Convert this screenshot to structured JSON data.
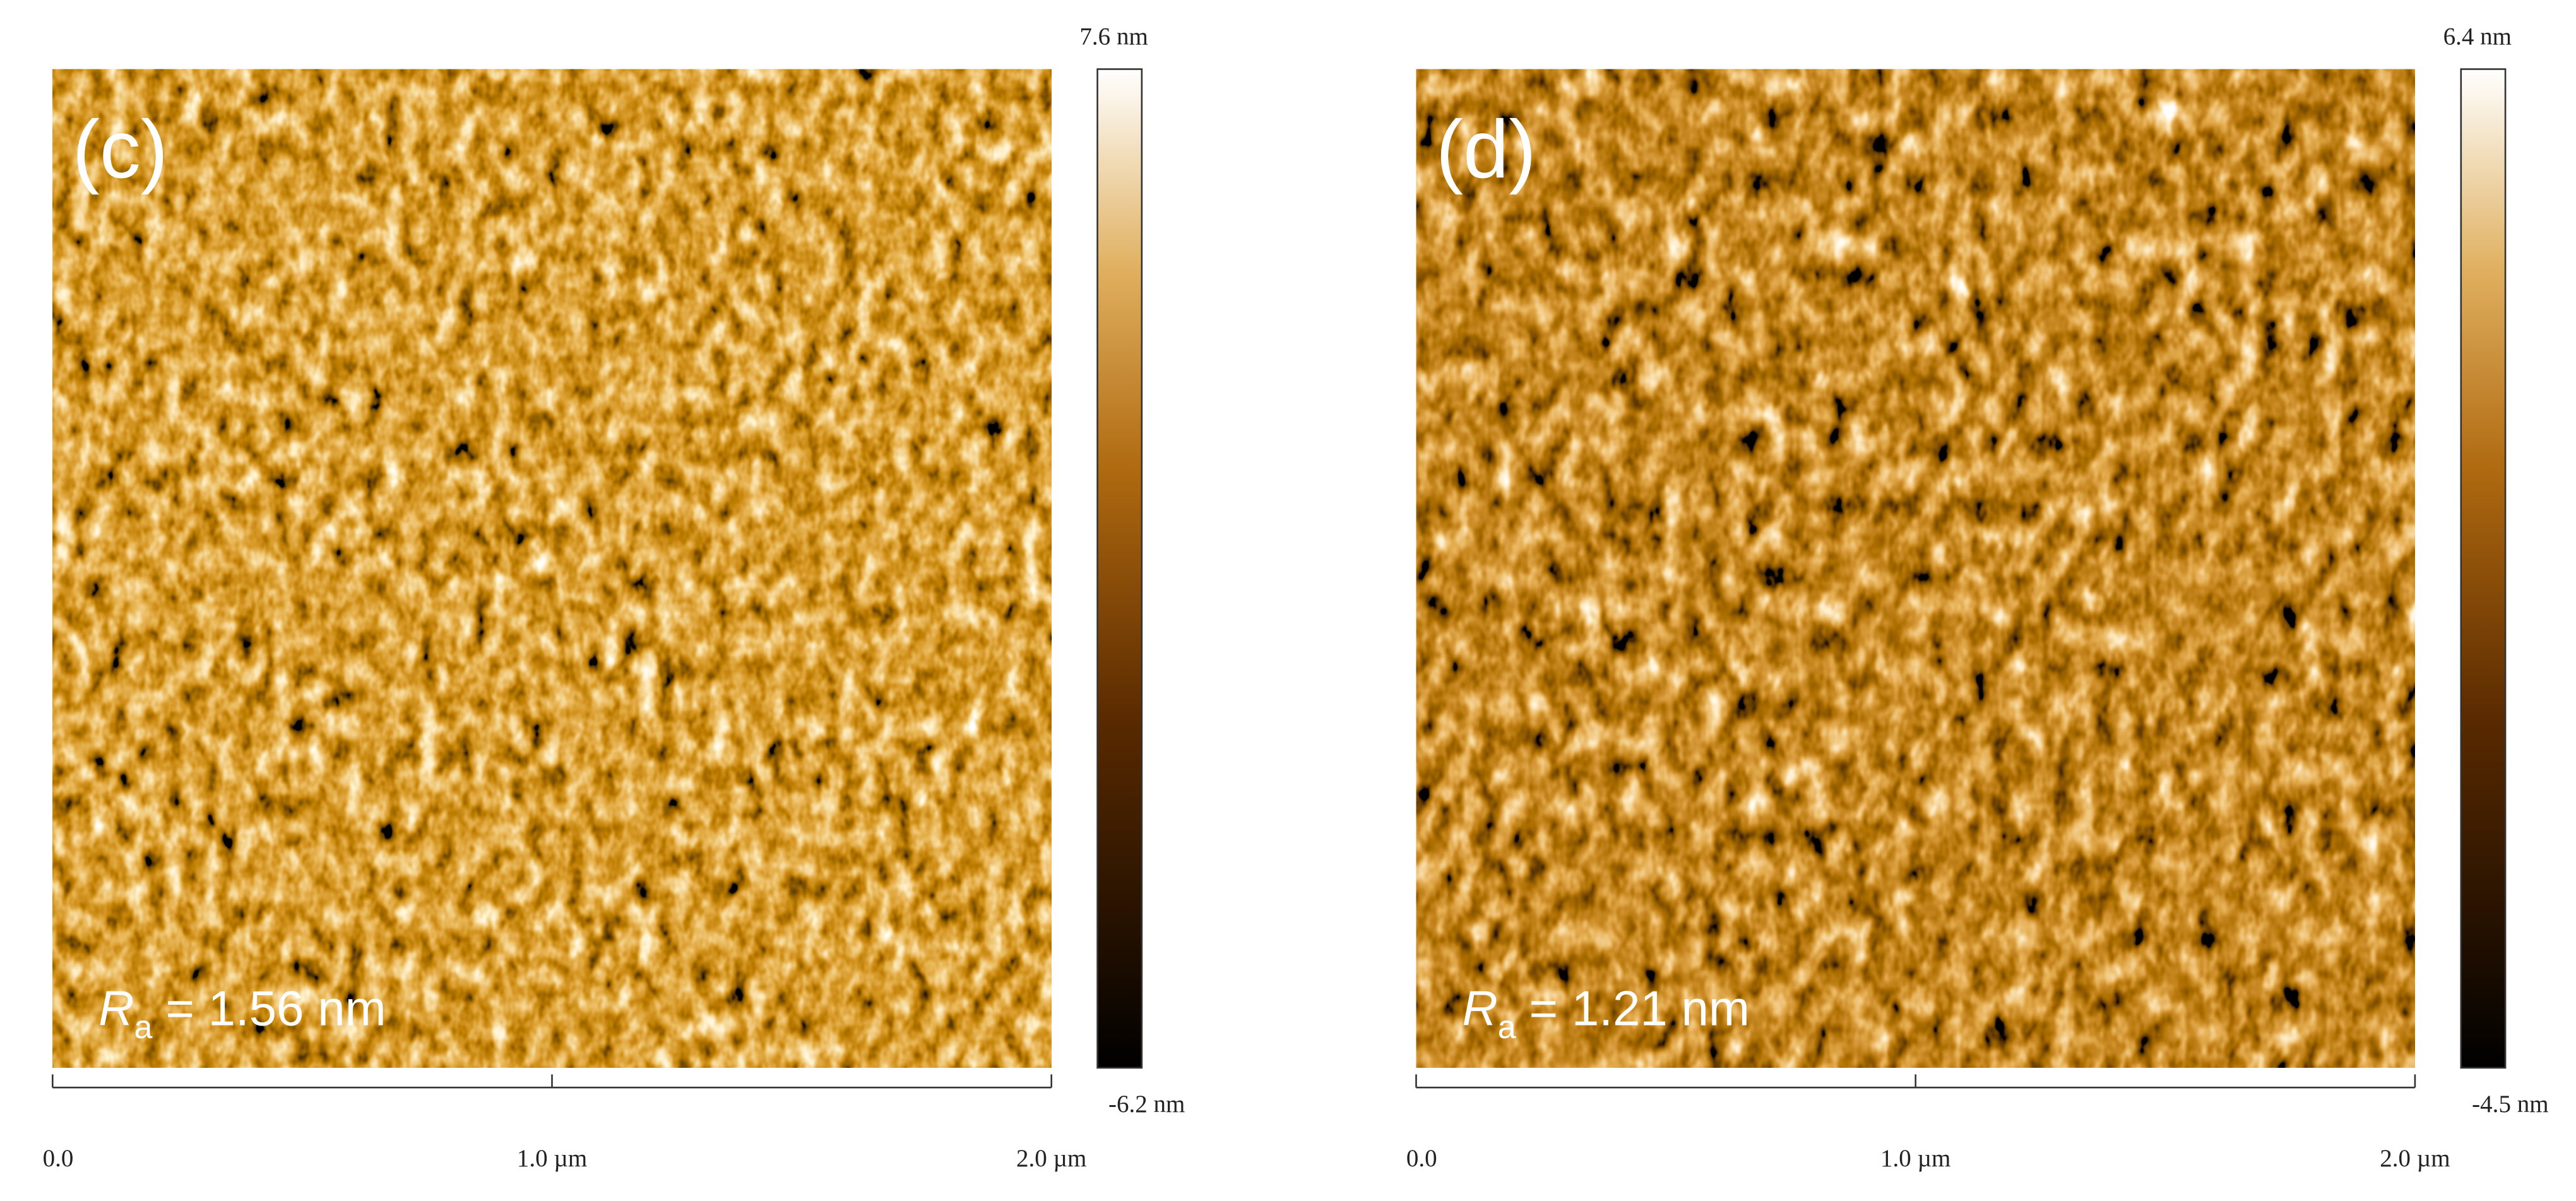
{
  "panels": [
    {
      "label": "(c)",
      "ra_symbol": "R",
      "ra_subscript": "a",
      "ra_value": "= 1.56 nm",
      "colorbar_max": "7.6 nm",
      "colorbar_min": "-6.2 nm",
      "xlim": [
        0,
        2
      ],
      "xticks": [
        {
          "value": 0,
          "label": "0.0"
        },
        {
          "value": 1,
          "label": "1.0 µm"
        },
        {
          "value": 2,
          "label": "2.0 µm"
        }
      ]
    },
    {
      "label": "(d)",
      "ra_symbol": "R",
      "ra_subscript": "a",
      "ra_value": "= 1.21 nm",
      "colorbar_max": "6.4 nm",
      "colorbar_min": "-4.5 nm",
      "xlim": [
        0,
        2
      ],
      "xticks": [
        {
          "value": 0,
          "label": "0.0"
        },
        {
          "value": 1,
          "label": "1.0 µm"
        },
        {
          "value": 2,
          "label": "2.0 µm"
        }
      ]
    }
  ]
}
